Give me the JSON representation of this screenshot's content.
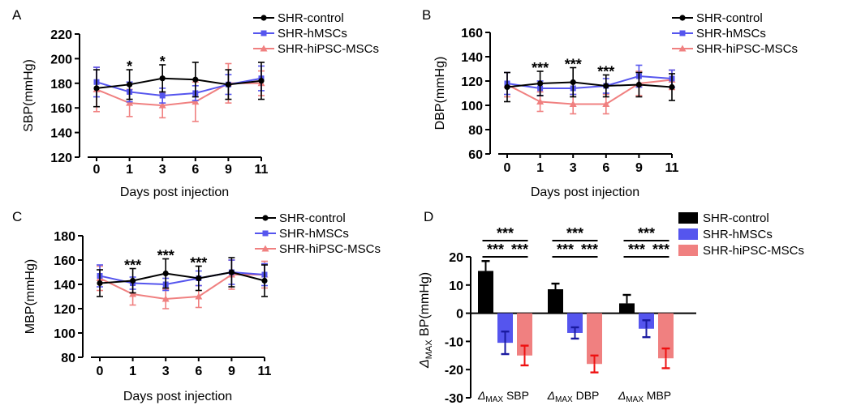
{
  "chart_data": [
    {
      "panel": "A",
      "type": "line",
      "xlabel": "Days post injection",
      "ylabel": "SBP(mmHg)",
      "ylim": [
        120,
        220
      ],
      "yticks": [
        120,
        140,
        160,
        180,
        200,
        220
      ],
      "x": [
        0,
        1,
        3,
        6,
        9,
        11
      ],
      "x_tick_labels": [
        "0",
        "1",
        "3",
        "6",
        "9",
        "11"
      ],
      "legend_position": "top-right",
      "series": [
        {
          "name": "SHR-control",
          "color": "#000000",
          "marker": "circle",
          "values": [
            176,
            179,
            184,
            183,
            179,
            182
          ],
          "errors": [
            15,
            12,
            11,
            14,
            12,
            15
          ]
        },
        {
          "name": "SHR-hMSCs",
          "color": "#5555ee",
          "marker": "square",
          "values": [
            181,
            173,
            170,
            172,
            179,
            184
          ],
          "errors": [
            12,
            8,
            6,
            6,
            8,
            10
          ]
        },
        {
          "name": "SHR-hiPSC-MSCs",
          "color": "#f08080",
          "marker": "triangle",
          "values": [
            175,
            164,
            162,
            165,
            180,
            180
          ],
          "errors": [
            18,
            11,
            10,
            16,
            16,
            10
          ]
        }
      ],
      "annotations": [
        {
          "x": 1,
          "text": "*"
        },
        {
          "x": 3,
          "text": "*"
        }
      ]
    },
    {
      "panel": "B",
      "type": "line",
      "xlabel": "Days post injection",
      "ylabel": "DBP(mmHg)",
      "ylim": [
        60,
        160
      ],
      "yticks": [
        60,
        80,
        100,
        120,
        140,
        160
      ],
      "x": [
        0,
        1,
        3,
        6,
        9,
        11
      ],
      "x_tick_labels": [
        "0",
        "1",
        "3",
        "6",
        "9",
        "11"
      ],
      "legend_position": "top-right",
      "series": [
        {
          "name": "SHR-control",
          "color": "#000000",
          "marker": "circle",
          "values": [
            115,
            118,
            119,
            116,
            117,
            115
          ],
          "errors": [
            12,
            10,
            12,
            9,
            10,
            11
          ]
        },
        {
          "name": "SHR-hMSCs",
          "color": "#5555ee",
          "marker": "square",
          "values": [
            118,
            114,
            114,
            116,
            124,
            122
          ],
          "errors": [
            9,
            6,
            5,
            6,
            9,
            7
          ]
        },
        {
          "name": "SHR-hiPSC-MSCs",
          "color": "#f08080",
          "marker": "triangle",
          "values": [
            117,
            103,
            101,
            101,
            118,
            121
          ],
          "errors": [
            10,
            8,
            8,
            8,
            10,
            8
          ]
        }
      ],
      "annotations": [
        {
          "x": 1,
          "text": "***"
        },
        {
          "x": 3,
          "text": "***"
        },
        {
          "x": 6,
          "text": "***"
        }
      ]
    },
    {
      "panel": "C",
      "type": "line",
      "xlabel": "Days post injection",
      "ylabel": "MBP(mmHg)",
      "ylim": [
        80,
        180
      ],
      "yticks": [
        80,
        100,
        120,
        140,
        160,
        180
      ],
      "x": [
        0,
        1,
        3,
        6,
        9,
        11
      ],
      "x_tick_labels": [
        "0",
        "1",
        "3",
        "6",
        "9",
        "11"
      ],
      "legend_position": "top-right",
      "series": [
        {
          "name": "SHR-control",
          "color": "#000000",
          "marker": "circle",
          "values": [
            141,
            143,
            149,
            145,
            150,
            143
          ],
          "errors": [
            11,
            10,
            12,
            10,
            12,
            13
          ]
        },
        {
          "name": "SHR-hMSCs",
          "color": "#5555ee",
          "marker": "square",
          "values": [
            147,
            141,
            140,
            145,
            150,
            148
          ],
          "errors": [
            9,
            5,
            5,
            6,
            10,
            9
          ]
        },
        {
          "name": "SHR-hiPSC-MSCs",
          "color": "#f08080",
          "marker": "triangle",
          "values": [
            145,
            132,
            128,
            130,
            148,
            148
          ],
          "errors": [
            10,
            9,
            8,
            9,
            12,
            11
          ]
        }
      ],
      "annotations": [
        {
          "x": 1,
          "text": "***"
        },
        {
          "x": 3,
          "text": "***"
        },
        {
          "x": 6,
          "text": "***"
        }
      ]
    },
    {
      "panel": "D",
      "type": "bar",
      "ylabel_symbol": "Δ",
      "ylabel_sub": "MAX",
      "ylabel_rest": " BP(mmHg)",
      "ylim": [
        -30,
        20
      ],
      "yticks": [
        -30,
        -20,
        -10,
        0,
        10,
        20
      ],
      "categories": [
        {
          "symbol": "Δ",
          "sub": "MAX",
          "rest": " SBP"
        },
        {
          "symbol": "Δ",
          "sub": "MAX",
          "rest": " DBP"
        },
        {
          "symbol": "Δ",
          "sub": "MAX",
          "rest": " MBP"
        }
      ],
      "legend_position": "top-right",
      "series": [
        {
          "name": "SHR-control",
          "color": "#000000",
          "error_color": "#000000",
          "values": [
            15,
            8.5,
            3.5
          ],
          "errors": [
            3.5,
            2,
            3
          ]
        },
        {
          "name": "SHR-hMSCs",
          "color": "#5555ee",
          "error_color": "#1a1aa0",
          "values": [
            -10.5,
            -7,
            -5.5
          ],
          "errors": [
            4,
            2,
            3
          ]
        },
        {
          "name": "SHR-hiPSC-MSCs",
          "color": "#f08080",
          "error_color": "#ee1111",
          "values": [
            -15,
            -18,
            -16
          ],
          "errors": [
            3.5,
            3,
            3.5
          ]
        }
      ],
      "significance": [
        "***",
        "***",
        "***"
      ]
    }
  ]
}
